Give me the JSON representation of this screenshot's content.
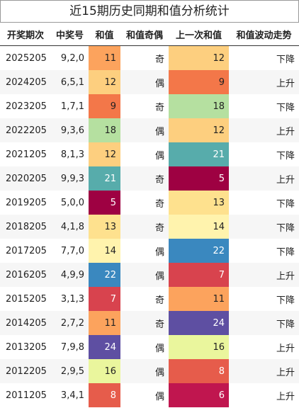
{
  "table": {
    "title": "近15期历史同期和值分析统计",
    "header": [
      "开奖期次",
      "中奖号",
      "和值",
      "和值奇偶",
      "上一次和值",
      "和值波动走势"
    ],
    "rows": [
      [
        "2025205",
        "9,2,0",
        11,
        "奇",
        12,
        "下降"
      ],
      [
        "2024205",
        "6,5,1",
        12,
        "偶",
        9,
        "上升"
      ],
      [
        "2023205",
        "1,7,1",
        9,
        "奇",
        18,
        "下降"
      ],
      [
        "2022205",
        "9,3,6",
        18,
        "偶",
        12,
        "上升"
      ],
      [
        "2021205",
        "8,1,3",
        12,
        "偶",
        21,
        "下降"
      ],
      [
        "2020205",
        "9,9,3",
        21,
        "奇",
        5,
        "上升"
      ],
      [
        "2019205",
        "5,0,0",
        5,
        "奇",
        13,
        "下降"
      ],
      [
        "2018205",
        "4,1,8",
        13,
        "奇",
        14,
        "下降"
      ],
      [
        "2017205",
        "7,7,0",
        14,
        "偶",
        22,
        "下降"
      ],
      [
        "2016205",
        "4,9,9",
        22,
        "偶",
        7,
        "上升"
      ],
      [
        "2015205",
        "3,1,3",
        7,
        "奇",
        11,
        "下降"
      ],
      [
        "2014205",
        "2,7,2",
        11,
        "奇",
        24,
        "下降"
      ],
      [
        "2013205",
        "7,9,8",
        24,
        "偶",
        16,
        "上升"
      ],
      [
        "2012205",
        "2,9,5",
        16,
        "偶",
        8,
        "上升"
      ],
      [
        "2011205",
        "3,4,1",
        8,
        "偶",
        6,
        "上升"
      ]
    ],
    "sum_colors": [
      "#fca35d",
      "#fdcf7f",
      "#f37749",
      "#b5e0a0",
      "#fdcf7f",
      "#57acab",
      "#9e0142",
      "#fee18e",
      "#fff3ad",
      "#3a88bf",
      "#d8434e",
      "#fca35d",
      "#5e4fa2",
      "#eaf69d",
      "#e65c4b"
    ],
    "prev_colors": [
      "#fdcf7f",
      "#f37749",
      "#b5e0a0",
      "#fdcf7f",
      "#57acab",
      "#9e0142",
      "#fee18e",
      "#fff3ad",
      "#3a88bf",
      "#d8434e",
      "#fca35d",
      "#5e4fa2",
      "#eaf69d",
      "#e65c4b",
      "#c0164f"
    ]
  }
}
